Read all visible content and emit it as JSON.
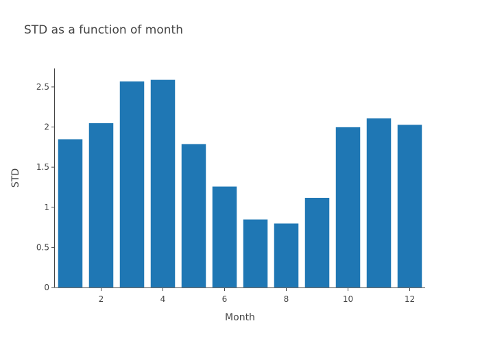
{
  "chart_data": {
    "type": "bar",
    "title": "STD as a function of month",
    "xlabel": "Month",
    "ylabel": "STD",
    "x": [
      1,
      2,
      3,
      4,
      5,
      6,
      7,
      8,
      9,
      10,
      11,
      12
    ],
    "values": [
      1.85,
      2.05,
      2.57,
      2.59,
      1.79,
      1.26,
      0.85,
      0.8,
      1.12,
      2.0,
      2.11,
      2.03
    ],
    "xlim": [
      0.5,
      12.5
    ],
    "ylim": [
      0,
      2.73
    ],
    "xticks": [
      2,
      4,
      6,
      8,
      10,
      12
    ],
    "yticks": [
      0,
      0.5,
      1,
      1.5,
      2,
      2.5
    ],
    "xtick_labels": [
      "2",
      "4",
      "6",
      "8",
      "10",
      "12"
    ],
    "ytick_labels": [
      "0",
      "0.5",
      "1",
      "1.5",
      "2",
      "2.5"
    ],
    "grid": false,
    "bar_color": "#1f77b4",
    "bar_edge_color": "#ffffff"
  }
}
